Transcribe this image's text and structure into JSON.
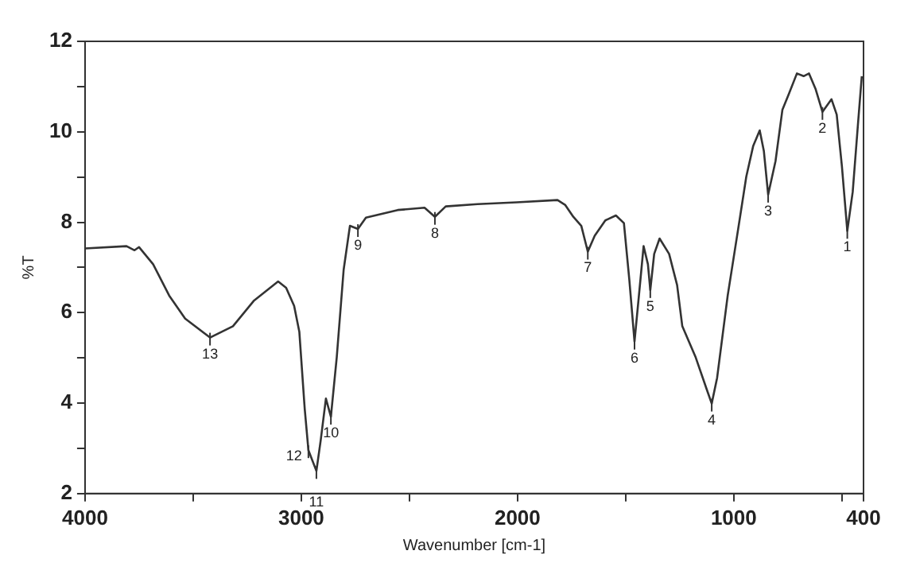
{
  "chart_data": {
    "type": "line",
    "xlabel": "Wavenumber [cm-1]",
    "ylabel": "%T",
    "x": [
      4000,
      3808,
      3771,
      3750,
      3685,
      3611,
      3537,
      3422,
      3316,
      3218,
      3107,
      3070,
      3033,
      3009,
      2984,
      2967,
      2930,
      2910,
      2886,
      2863,
      2836,
      2804,
      2775,
      2738,
      2701,
      2554,
      2430,
      2382,
      2332,
      2185,
      2005,
      1815,
      1779,
      1742,
      1705,
      1675,
      1643,
      1594,
      1545,
      1508,
      1483,
      1459,
      1434,
      1417,
      1397,
      1386,
      1368,
      1343,
      1299,
      1262,
      1238,
      1176,
      1127,
      1102,
      1077,
      1028,
      979,
      942,
      910,
      880,
      861,
      841,
      807,
      775,
      745,
      708,
      677,
      652,
      622,
      590,
      548,
      524,
      500,
      475,
      450,
      426,
      408
    ],
    "series": [
      {
        "color": "#333333",
        "values": [
          7.42,
          7.47,
          7.38,
          7.45,
          7.07,
          6.38,
          5.87,
          5.45,
          5.7,
          6.27,
          6.69,
          6.55,
          6.15,
          5.58,
          3.87,
          2.96,
          2.5,
          3.18,
          4.1,
          3.7,
          5.01,
          6.95,
          7.92,
          7.85,
          8.1,
          8.27,
          8.32,
          8.12,
          8.35,
          8.4,
          8.44,
          8.49,
          8.38,
          8.12,
          7.92,
          7.35,
          7.7,
          8.04,
          8.15,
          7.98,
          6.73,
          5.36,
          6.61,
          7.47,
          7.07,
          6.5,
          7.3,
          7.64,
          7.3,
          6.61,
          5.7,
          5.01,
          4.33,
          3.99,
          4.56,
          6.38,
          7.87,
          9.01,
          9.69,
          10.03,
          9.58,
          8.61,
          9.35,
          10.49,
          10.84,
          11.29,
          11.23,
          11.29,
          10.95,
          10.44,
          10.72,
          10.38,
          9.24,
          7.81,
          8.67,
          10.15,
          11.23
        ]
      }
    ],
    "xlim": [
      4000,
      400
    ],
    "xticks": [
      4000,
      {
        "value": 3500,
        "label": null
      },
      3000,
      {
        "value": 2500,
        "label": null
      },
      2000,
      {
        "value": 1500,
        "label": null
      },
      1000,
      {
        "value": 500,
        "label": null
      },
      400
    ],
    "ylim": [
      2,
      12
    ],
    "yticks": [
      2,
      {
        "value": 3,
        "label": null
      },
      4,
      {
        "value": 5,
        "label": null
      },
      6,
      {
        "value": 7,
        "label": null
      },
      8,
      {
        "value": 9,
        "label": null
      },
      10,
      {
        "value": 11,
        "label": null
      },
      12
    ],
    "grid": false,
    "legend": false,
    "marker": "none",
    "line_style": "solid",
    "annotations": [
      {
        "text": "1",
        "x": 475,
        "y": 7.81
      },
      {
        "text": "2",
        "x": 590,
        "y": 10.44
      },
      {
        "text": "3",
        "x": 841,
        "y": 8.61
      },
      {
        "text": "4",
        "x": 1102,
        "y": 3.99
      },
      {
        "text": "5",
        "x": 1386,
        "y": 6.5
      },
      {
        "text": "6",
        "x": 1459,
        "y": 5.36
      },
      {
        "text": "7",
        "x": 1675,
        "y": 7.35
      },
      {
        "text": "8",
        "x": 2382,
        "y": 8.12
      },
      {
        "text": "9",
        "x": 2738,
        "y": 7.85
      },
      {
        "text": "10",
        "x": 2863,
        "y": 3.7
      },
      {
        "text": "11",
        "x": 2930,
        "y": 2.5
      },
      {
        "text": "12",
        "x": 2967,
        "y": 2.96
      },
      {
        "text": "13",
        "x": 3422,
        "y": 5.45
      }
    ]
  }
}
